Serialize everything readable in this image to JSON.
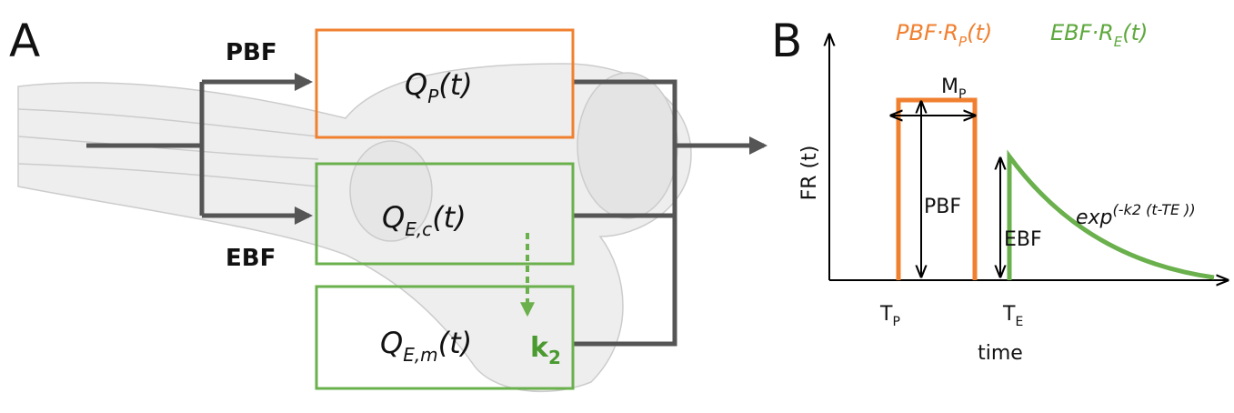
{
  "panel_a": {
    "label": "A",
    "flows": {
      "top": "PBF",
      "bottom": "EBF"
    },
    "compartments": [
      {
        "symbol": "Q",
        "subscript": "P",
        "argument": "(t)"
      },
      {
        "symbol": "Q",
        "subscript": "E,c",
        "argument": "(t)"
      },
      {
        "symbol": "Q",
        "subscript": "E,m",
        "argument": "(t)"
      }
    ],
    "rate": {
      "symbol": "k",
      "subscript": "2"
    }
  },
  "panel_b": {
    "label": "B",
    "legend": [
      {
        "text": "PBF·R",
        "subscript": "P",
        "argument": "(t)"
      },
      {
        "text": "EBF·R",
        "subscript": "E",
        "argument": "(t)"
      }
    ],
    "y_axis_label": "FR (t)",
    "x_axis_label": "time",
    "peak_label": {
      "symbol": "M",
      "subscript": "P"
    },
    "height_labels": [
      "PBF",
      "EBF"
    ],
    "decay_label": {
      "base": "exp",
      "superscript": "(-k2 (t-TE ))"
    },
    "time_labels": [
      {
        "symbol": "T",
        "subscript": "P"
      },
      {
        "symbol": "T",
        "subscript": "E"
      }
    ]
  }
}
